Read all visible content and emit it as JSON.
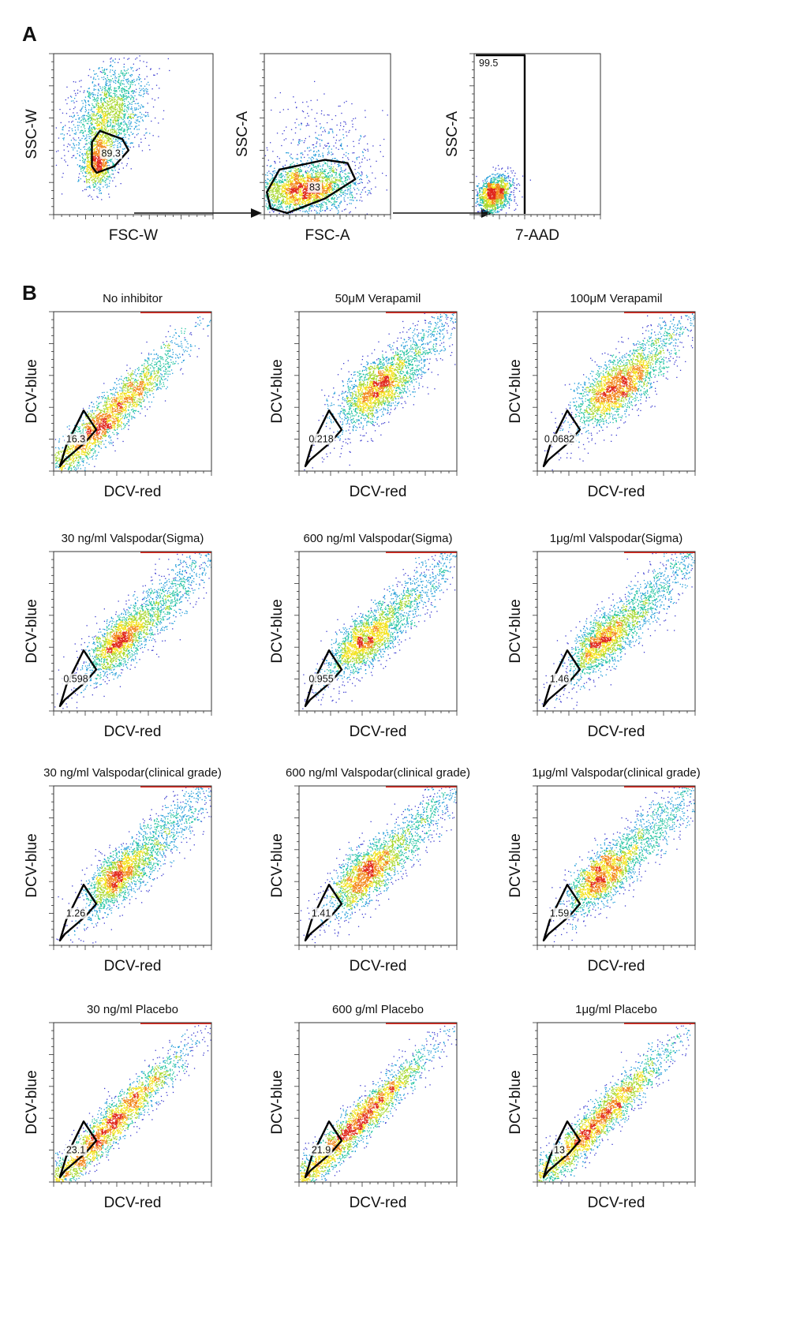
{
  "colors": {
    "density": [
      "#3b3bd0",
      "#1f9bd8",
      "#22c3a0",
      "#a6d72c",
      "#f3e11a",
      "#f2861a",
      "#e0271c"
    ],
    "gate": "#000000",
    "frame": "#333333"
  },
  "panels": {
    "A": {
      "letter": "A"
    },
    "B": {
      "letter": "B"
    }
  },
  "chart_data": [
    {
      "type": "scatter",
      "panel": "A",
      "xlabel": "FSC-W",
      "ylabel": "SSC-W",
      "gate_label": "89.3"
    },
    {
      "type": "scatter",
      "panel": "A",
      "xlabel": "FSC-A",
      "ylabel": "SSC-A",
      "gate_label": "83"
    },
    {
      "type": "scatter",
      "panel": "A",
      "xlabel": "7-AAD",
      "ylabel": "SSC-A",
      "gate_label": "99.5"
    },
    {
      "type": "scatter",
      "panel": "B",
      "title": "No inhibitor",
      "xlabel": "DCV-red",
      "ylabel": "DCV-blue",
      "gate_label": "16.3"
    },
    {
      "type": "scatter",
      "panel": "B",
      "title": "50μM Verapamil",
      "xlabel": "DCV-red",
      "ylabel": "DCV-blue",
      "gate_label": "0.218"
    },
    {
      "type": "scatter",
      "panel": "B",
      "title": "100μM Verapamil",
      "xlabel": "DCV-red",
      "ylabel": "DCV-blue",
      "gate_label": "0.0682"
    },
    {
      "type": "scatter",
      "panel": "B",
      "title": "30 ng/ml Valspodar(Sigma)",
      "xlabel": "DCV-red",
      "ylabel": "DCV-blue",
      "gate_label": "0.598"
    },
    {
      "type": "scatter",
      "panel": "B",
      "title": "600 ng/ml Valspodar(Sigma)",
      "xlabel": "DCV-red",
      "ylabel": "DCV-blue",
      "gate_label": "0.955"
    },
    {
      "type": "scatter",
      "panel": "B",
      "title": "1μg/ml Valspodar(Sigma)",
      "xlabel": "DCV-red",
      "ylabel": "DCV-blue",
      "gate_label": "1.46"
    },
    {
      "type": "scatter",
      "panel": "B",
      "title": "30 ng/ml Valspodar(clinical grade)",
      "xlabel": "DCV-red",
      "ylabel": "DCV-blue",
      "gate_label": "1.26"
    },
    {
      "type": "scatter",
      "panel": "B",
      "title": "600 ng/ml Valspodar(clinical grade)",
      "xlabel": "DCV-red",
      "ylabel": "DCV-blue",
      "gate_label": "1.41"
    },
    {
      "type": "scatter",
      "panel": "B",
      "title": "1μg/ml Valspodar(clinical grade)",
      "xlabel": "DCV-red",
      "ylabel": "DCV-blue",
      "gate_label": "1.59"
    },
    {
      "type": "scatter",
      "panel": "B",
      "title": "30 ng/ml Placebo",
      "xlabel": "DCV-red",
      "ylabel": "DCV-blue",
      "gate_label": "23.1"
    },
    {
      "type": "scatter",
      "panel": "B",
      "title": "600 g/ml Placebo",
      "xlabel": "DCV-red",
      "ylabel": "DCV-blue",
      "gate_label": "21.9"
    },
    {
      "type": "scatter",
      "panel": "B",
      "title": "1μg/ml Placebo",
      "xlabel": "DCV-red",
      "ylabel": "DCV-blue",
      "gate_label": "13"
    }
  ]
}
